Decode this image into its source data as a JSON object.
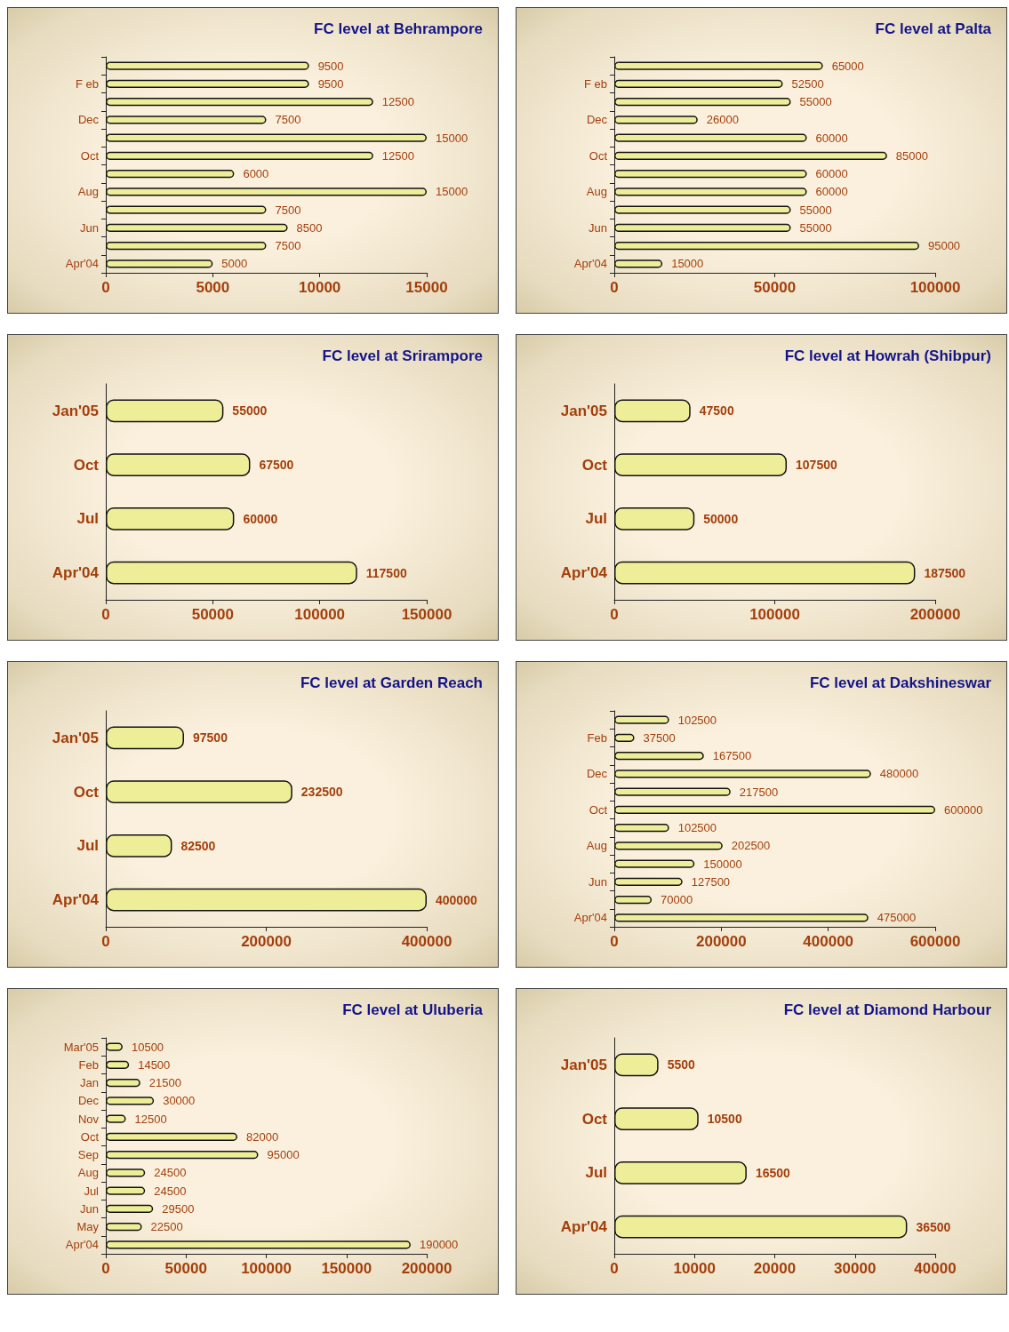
{
  "chart_data": [
    {
      "type": "bar",
      "orientation": "horizontal",
      "title": "FC level at Behrampore",
      "categories": [
        null,
        "F eb",
        null,
        "Dec",
        null,
        "Oct",
        null,
        "Aug",
        null,
        "Jun",
        null,
        "Apr'04"
      ],
      "values": [
        9500,
        9500,
        12500,
        7500,
        15000,
        12500,
        6000,
        15000,
        7500,
        8500,
        7500,
        5000
      ],
      "color": "#eeee99",
      "xlim": [
        0,
        15000
      ],
      "xticks": [
        0,
        5000,
        10000,
        15000
      ],
      "data_labels": true
    },
    {
      "type": "bar",
      "orientation": "horizontal",
      "title": "FC level at Palta",
      "categories": [
        null,
        "F eb",
        null,
        "Dec",
        null,
        "Oct",
        null,
        "Aug",
        null,
        "Jun",
        null,
        "Apr'04"
      ],
      "values": [
        65000,
        52500,
        55000,
        26000,
        60000,
        85000,
        60000,
        60000,
        55000,
        55000,
        95000,
        15000
      ],
      "color": "#eeee99",
      "xlim": [
        0,
        100000
      ],
      "xticks": [
        0,
        50000,
        100000
      ],
      "data_labels": true
    },
    {
      "type": "bar",
      "orientation": "horizontal",
      "title": "FC level at Srirampore",
      "categories": [
        "Jan'05",
        "Oct",
        "Jul",
        "Apr'04"
      ],
      "values": [
        55000,
        67500,
        60000,
        117500
      ],
      "color": "#eeee99",
      "xlim": [
        0,
        150000
      ],
      "xticks": [
        0,
        50000,
        100000,
        150000
      ],
      "data_labels": true
    },
    {
      "type": "bar",
      "orientation": "horizontal",
      "title": "FC level at Howrah (Shibpur)",
      "categories": [
        "Jan'05",
        "Oct",
        "Jul",
        "Apr'04"
      ],
      "values": [
        47500,
        107500,
        50000,
        187500
      ],
      "color": "#eeee99",
      "xlim": [
        0,
        200000
      ],
      "xticks": [
        0,
        100000,
        200000
      ],
      "data_labels": true
    },
    {
      "type": "bar",
      "orientation": "horizontal",
      "title": "FC level at Garden Reach",
      "categories": [
        "Jan'05",
        "Oct",
        "Jul",
        "Apr'04"
      ],
      "values": [
        97500,
        232500,
        82500,
        400000
      ],
      "color": "#eeee99",
      "xlim": [
        0,
        400000
      ],
      "xticks": [
        0,
        200000,
        400000
      ],
      "data_labels": true
    },
    {
      "type": "bar",
      "orientation": "horizontal",
      "title": "FC level at Dakshineswar",
      "categories": [
        null,
        "Feb",
        null,
        "Dec",
        null,
        "Oct",
        null,
        "Aug",
        null,
        "Jun",
        null,
        "Apr'04"
      ],
      "values": [
        102500,
        37500,
        167500,
        480000,
        217500,
        600000,
        102500,
        202500,
        150000,
        127500,
        70000,
        475000
      ],
      "color": "#eeee99",
      "xlim": [
        0,
        600000
      ],
      "xticks": [
        0,
        200000,
        400000,
        600000
      ],
      "data_labels": true
    },
    {
      "type": "bar",
      "orientation": "horizontal",
      "title": "FC level at Uluberia",
      "categories": [
        "Mar'05",
        "Feb",
        "Jan",
        "Dec",
        "Nov",
        "Oct",
        "Sep",
        "Aug",
        "Jul",
        "Jun",
        "May",
        "Apr'04"
      ],
      "values": [
        10500,
        14500,
        21500,
        30000,
        12500,
        82000,
        95000,
        24500,
        24500,
        29500,
        22500,
        190000
      ],
      "color": "#eeee99",
      "xlim": [
        0,
        200000
      ],
      "xticks": [
        0,
        50000,
        100000,
        150000,
        200000
      ],
      "data_labels": true
    },
    {
      "type": "bar",
      "orientation": "horizontal",
      "title": "FC level at Diamond Harbour",
      "categories": [
        "Jan'05",
        "Oct",
        "Jul",
        "Apr'04"
      ],
      "values": [
        5500,
        10500,
        16500,
        36500
      ],
      "color": "#eeee99",
      "xlim": [
        0,
        40000
      ],
      "xticks": [
        0,
        10000,
        20000,
        30000,
        40000
      ],
      "data_labels": true
    }
  ]
}
